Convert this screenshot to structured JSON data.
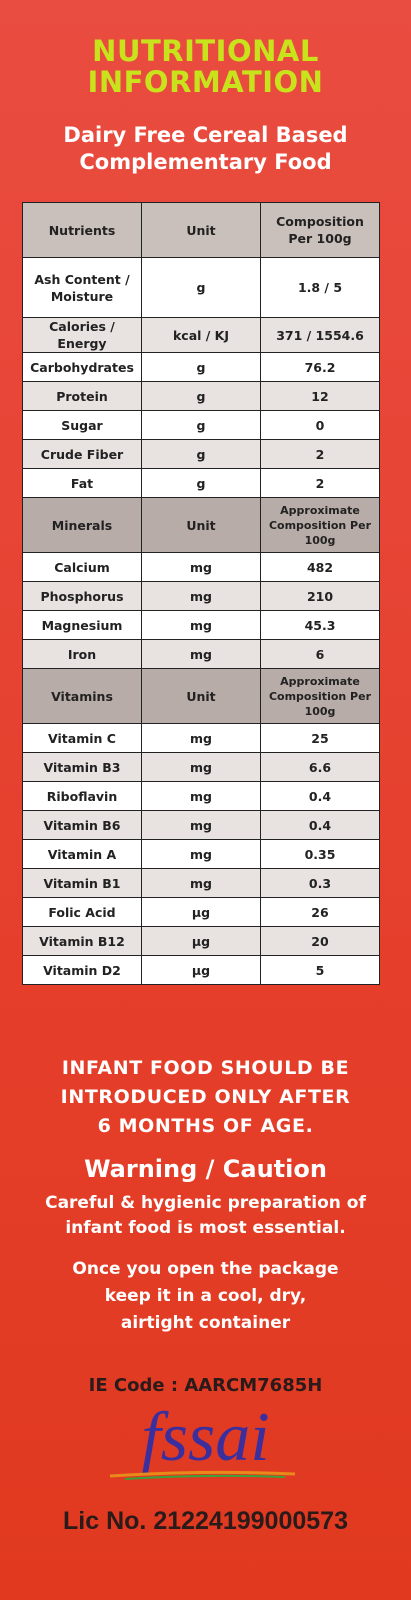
{
  "header": {
    "title": [
      "NUTRITIONAL",
      "INFORMATION"
    ],
    "subtitle": [
      "Dairy Free Cereal Based",
      "Complementary Food"
    ]
  },
  "table": {
    "sections": [
      {
        "header": [
          "Nutrients",
          "Unit",
          "Composition Per 100g"
        ],
        "rows": [
          [
            "Ash Content / Moisture",
            "g",
            "1.8 / 5"
          ],
          [
            "Calories / Energy",
            "kcal / KJ",
            "371 / 1554.6"
          ],
          [
            "Carbohydrates",
            "g",
            "76.2"
          ],
          [
            "Protein",
            "g",
            "12"
          ],
          [
            "Sugar",
            "g",
            "0"
          ],
          [
            "Crude Fiber",
            "g",
            "2"
          ],
          [
            "Fat",
            "g",
            "2"
          ]
        ]
      },
      {
        "header": [
          "Minerals",
          "Unit",
          "Approximate Composition Per 100g"
        ],
        "rows": [
          [
            "Calcium",
            "mg",
            "482"
          ],
          [
            "Phosphorus",
            "mg",
            "210"
          ],
          [
            "Magnesium",
            "mg",
            "45.3"
          ],
          [
            "Iron",
            "mg",
            "6"
          ]
        ]
      },
      {
        "header": [
          "Vitamins",
          "Unit",
          "Approximate Composition Per 100g"
        ],
        "rows": [
          [
            "Vitamin C",
            "mg",
            "25"
          ],
          [
            "Vitamin B3",
            "mg",
            "6.6"
          ],
          [
            "Riboflavin",
            "mg",
            "0.4"
          ],
          [
            "Vitamin B6",
            "mg",
            "0.4"
          ],
          [
            "Vitamin A",
            "mg",
            "0.35"
          ],
          [
            "Vitamin B1",
            "mg",
            "0.3"
          ],
          [
            "Folic Acid",
            "µg",
            "26"
          ],
          [
            "Vitamin B12",
            "µg",
            "20"
          ],
          [
            "Vitamin D2",
            "µg",
            "5"
          ]
        ]
      }
    ]
  },
  "notice": [
    "INFANT FOOD SHOULD BE",
    "INTRODUCED ONLY AFTER",
    "6 MONTHS OF AGE."
  ],
  "warning": {
    "title": "Warning / Caution",
    "lines": [
      "Careful & hygienic preparation of",
      "infant food is most essential."
    ],
    "storage": [
      "Once you open the package",
      "keep it in a cool, dry,",
      "airtight container"
    ]
  },
  "ie_code": "IE Code : AARCM7685H",
  "logo": "fssai",
  "license": "Lic No. 21224199000573"
}
